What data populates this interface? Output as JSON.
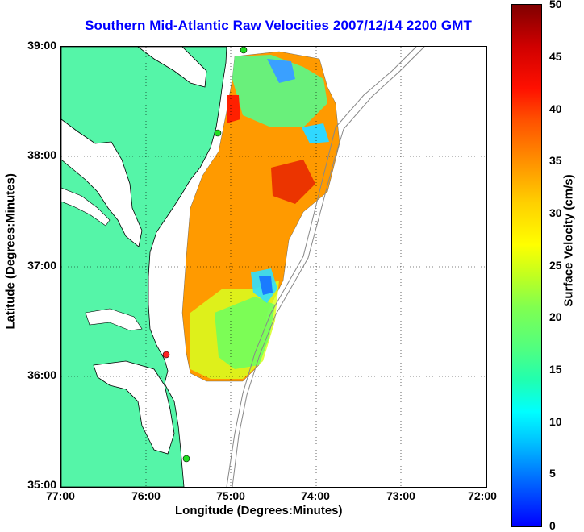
{
  "title": "Southern Mid-Atlantic Raw Velocities 2007/12/14 2200 GMT",
  "xlabel": "Longitude (Degrees:Minutes)",
  "ylabel": "Latitude (Degrees:Minutes)",
  "x_ticks": [
    "77:00",
    "76:00",
    "75:00",
    "74:00",
    "73:00",
    "72:00"
  ],
  "y_ticks": [
    "39:00",
    "38:00",
    "37:00",
    "36:00",
    "35:00"
  ],
  "colorbar": {
    "label": "Surface Velocity (cm/s)",
    "ticks": [
      "50",
      "45",
      "40",
      "35",
      "30",
      "25",
      "20",
      "15",
      "10",
      "5",
      "0"
    ],
    "range": [
      0,
      50
    ]
  },
  "colors": {
    "land": "#55f5a8",
    "water": "#ffffff",
    "title": "#0000ff",
    "grid": "#000000",
    "bathymetry": "#888888",
    "station_active": "#22dd22",
    "station_inactive": "#ff2222"
  }
}
